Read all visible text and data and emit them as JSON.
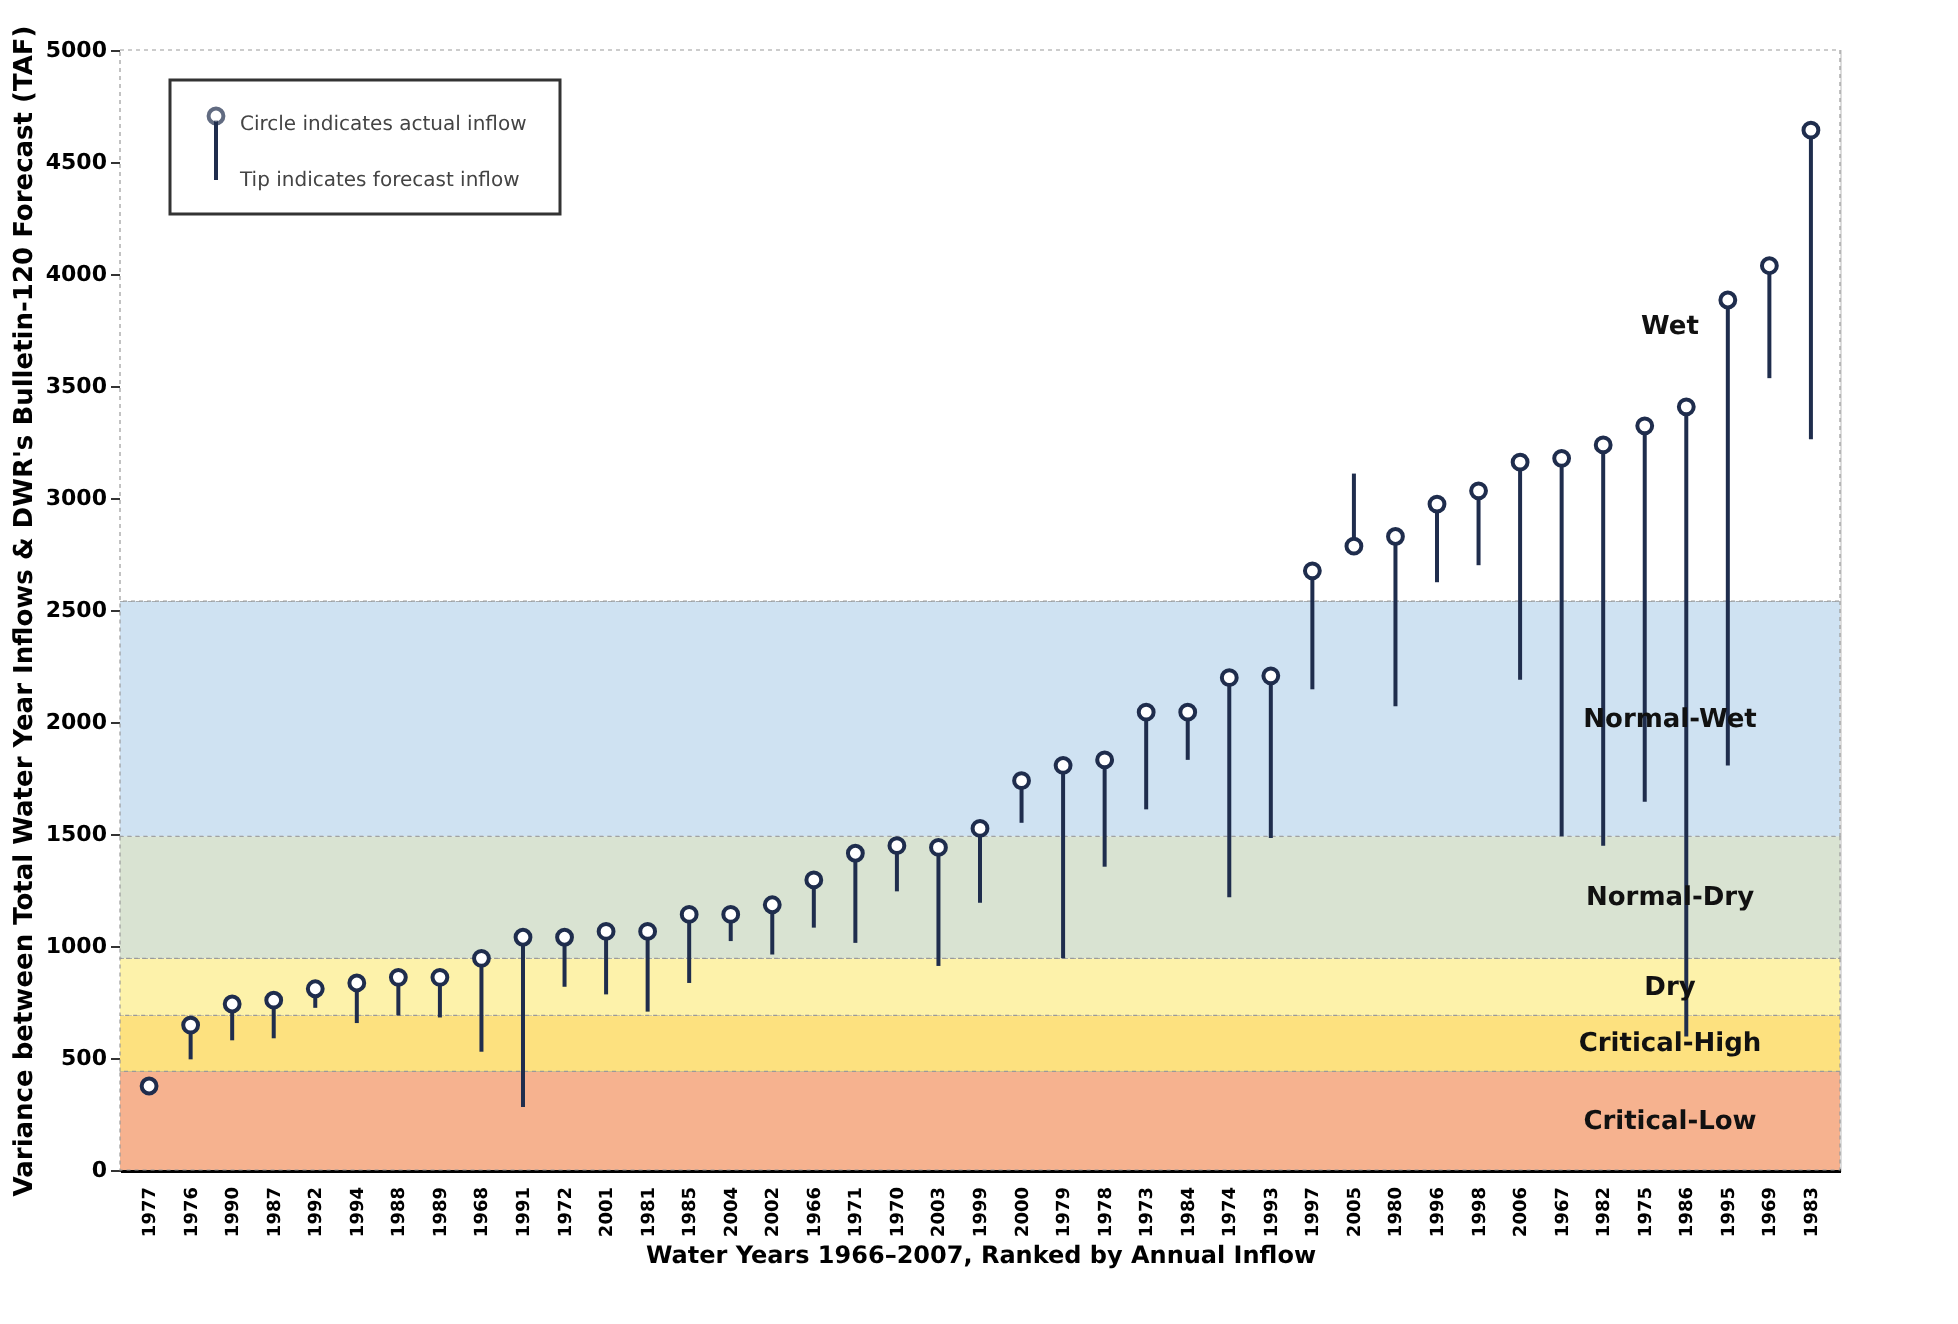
{
  "chart_data": {
    "type": "scatter",
    "xlabel": "Water Years 1966–2007, Ranked by Annual Inflow",
    "ylabel": "Variance between Total Water Year Inflows & DWR's Bulletin-120 Forecast (TAF)",
    "categories": [
      "1977",
      "1976",
      "1990",
      "1987",
      "1992",
      "1994",
      "1988",
      "1989",
      "1968",
      "1991",
      "1972",
      "2001",
      "1981",
      "1985",
      "2004",
      "2002",
      "1966",
      "1971",
      "1970",
      "2003",
      "1999",
      "2000",
      "1979",
      "1978",
      "1973",
      "1984",
      "1974",
      "1993",
      "1997",
      "2005",
      "1980",
      "1996",
      "1998",
      "2006",
      "1967",
      "1982",
      "1975",
      "1986",
      "1995",
      "1969",
      "1983"
    ],
    "series": [
      {
        "name": "Circle indicates actual inflow",
        "color": "#1f2d4d",
        "marker": "circle",
        "values": [
          375,
          647,
          741,
          758,
          809,
          835,
          860,
          860,
          945,
          1039,
          1039,
          1065,
          1065,
          1141,
          1141,
          1184,
          1295,
          1414,
          1448,
          1440,
          1525,
          1738,
          1806,
          1831,
          2044,
          2044,
          2198,
          2206,
          2675,
          2785,
          2828,
          2973,
          3032,
          3160,
          3177,
          3237,
          3322,
          3407,
          3884,
          4037,
          4642
        ],
        "errors": [
          null,
          [
            494,
            647
          ],
          [
            579,
            741
          ],
          [
            588,
            758
          ],
          [
            724,
            809
          ],
          [
            656,
            835
          ],
          [
            690,
            860
          ],
          [
            681,
            860
          ],
          [
            528,
            945
          ],
          [
            281,
            1039
          ],
          [
            818,
            1039
          ],
          [
            784,
            1065
          ],
          [
            707,
            1065
          ],
          [
            835,
            1141
          ],
          [
            1022,
            1141
          ],
          [
            962,
            1184
          ],
          [
            1082,
            1295
          ],
          [
            1014,
            1414
          ],
          [
            1244,
            1448
          ],
          [
            911,
            1440
          ],
          [
            1193,
            1525
          ],
          [
            1550,
            1738
          ],
          [
            945,
            1806
          ],
          [
            1354,
            1831
          ],
          [
            1610,
            2044
          ],
          [
            1831,
            2044
          ],
          [
            1218,
            2198
          ],
          [
            1482,
            2206
          ],
          [
            2146,
            2675
          ],
          [
            2785,
            3109
          ],
          [
            2070,
            2828
          ],
          [
            2624,
            2973
          ],
          [
            2700,
            3032
          ],
          [
            2189,
            3160
          ],
          [
            1490,
            3177
          ],
          [
            1448,
            3237
          ],
          [
            1644,
            3322
          ],
          [
            596,
            3407
          ],
          [
            1806,
            3884
          ],
          [
            3535,
            4037
          ],
          [
            3262,
            4642
          ]
        ]
      }
    ],
    "annotations": [
      "Tip indicates forecast inflow"
    ],
    "bands": [
      {
        "axis": "y",
        "from": 0,
        "to": 440,
        "label": "Critical-Low",
        "color": "#f6b28f"
      },
      {
        "axis": "y",
        "from": 440,
        "to": 690,
        "label": "Critical-High",
        "color": "#fde17f"
      },
      {
        "axis": "y",
        "from": 690,
        "to": 945,
        "label": "Dry",
        "color": "#fdf2aa"
      },
      {
        "axis": "y",
        "from": 945,
        "to": 1490,
        "label": "Normal-Dry",
        "color": "#d9e3d2"
      },
      {
        "axis": "y",
        "from": 1490,
        "to": 2540,
        "label": "Normal-Wet",
        "color": "#cfe2f2"
      },
      {
        "axis": "y",
        "from": 2540,
        "to": 5000,
        "label": "Wet",
        "color": "#ffffff"
      }
    ],
    "ylim": [
      0,
      5000
    ],
    "yticks": [
      0,
      500,
      1000,
      1500,
      2000,
      2500,
      3000,
      3500,
      4000,
      4500,
      5000
    ],
    "legend": "top left",
    "grid": false
  }
}
